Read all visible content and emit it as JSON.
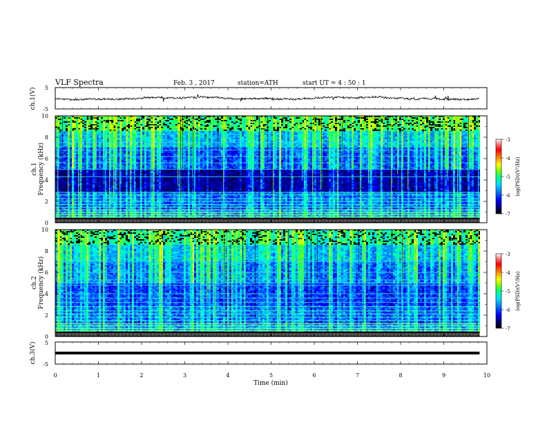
{
  "header": {
    "title": "VLF  Spectra",
    "date": "Feb. 3  , 2017",
    "station": "station=ATH",
    "start": "start  UT  =   4  : 50 : 1"
  },
  "colors": {
    "waveform": "#000000",
    "axis": "#000000",
    "colormap": [
      "#000000",
      "#00007a",
      "#0000ff",
      "#0080ff",
      "#00e0ff",
      "#00ff80",
      "#80ff00",
      "#ffff00",
      "#ff8000",
      "#ff0000",
      "#ff8080",
      "#ffffff"
    ]
  },
  "chart_data": [
    {
      "type": "line",
      "panel": "ch1-waveform",
      "ylabel": "ch.1(V)",
      "ylim": [
        -5,
        5
      ],
      "yticks": [
        "5",
        "-5"
      ],
      "xlim": [
        0,
        10
      ],
      "description_level": "noisy trace near 0 V",
      "baseline": 0
    },
    {
      "type": "heatmap",
      "panel": "ch1-spectrogram",
      "ylabel": "ch.1\nFrequency  (kHz)",
      "ylim": [
        0,
        10
      ],
      "yticks": [
        "0",
        "2",
        "4",
        "6",
        "8",
        "10"
      ],
      "xlim": [
        0,
        10
      ],
      "colorbar": {
        "label": "log(PSD)(V²/Hz)",
        "range": [
          -7,
          -3
        ],
        "ticks": [
          "-3",
          "-4",
          "-5",
          "-6",
          "-7"
        ]
      }
    },
    {
      "type": "heatmap",
      "panel": "ch2-spectrogram",
      "ylabel": "ch.2\nFrequency  (kHz)",
      "ylim": [
        0,
        10
      ],
      "yticks": [
        "0",
        "2",
        "4",
        "6",
        "8",
        "10"
      ],
      "xlim": [
        0,
        10
      ],
      "colorbar": {
        "label": "log(PSD)(V²/Hz)",
        "range": [
          -7,
          -3
        ],
        "ticks": [
          "-3",
          "-4",
          "-5",
          "-6",
          "-7"
        ]
      }
    },
    {
      "type": "line",
      "panel": "ch3-waveform",
      "ylabel": "ch.3(V)",
      "ylim": [
        -5,
        5
      ],
      "yticks": [
        "5",
        "-5"
      ],
      "xlim": [
        0,
        10
      ],
      "baseline": 0
    }
  ],
  "xaxis": {
    "label": "Time  (min)",
    "ticks": [
      "0",
      "1",
      "2",
      "3",
      "4",
      "5",
      "6",
      "7",
      "8",
      "9",
      "10"
    ],
    "data_end": 9.83
  }
}
